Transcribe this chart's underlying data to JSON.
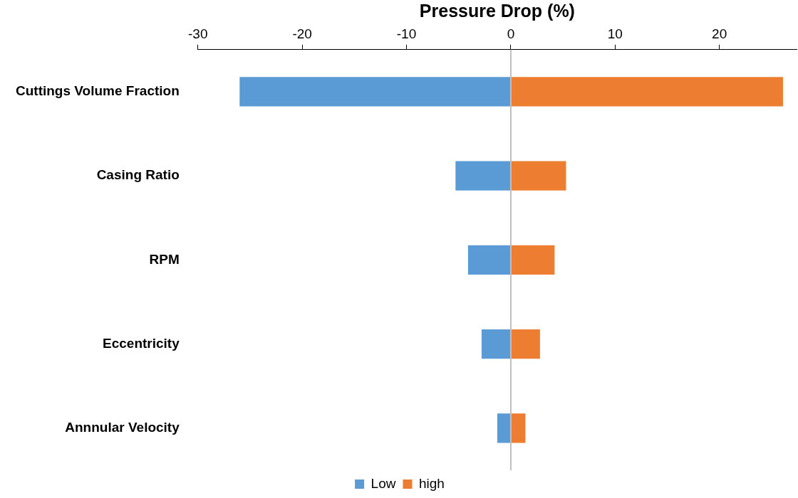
{
  "chart_data": {
    "type": "bar",
    "orientation": "horizontal",
    "stacked": true,
    "xlabel": "Pressure Drop (%)",
    "categories": [
      "Cuttings Volume Fraction",
      "Casing Ratio",
      "RPM",
      "Eccentricity",
      "Annnular Velocity"
    ],
    "series": [
      {
        "name": "Low",
        "color": "#5b9bd5",
        "values": [
          -26,
          -5.3,
          -4.1,
          -2.8,
          -1.3
        ]
      },
      {
        "name": "high",
        "color": "#ed7d31",
        "values": [
          26.1,
          5.3,
          4.2,
          2.8,
          1.4
        ]
      }
    ],
    "xlim": [
      -30,
      27.4
    ],
    "xticks": [
      -30,
      -20,
      -10,
      0,
      10,
      20
    ],
    "ref_lines": [
      {
        "axis": "x",
        "value": 0,
        "color": "#bfbfbf"
      }
    ],
    "grid": false,
    "legend": "bottom"
  }
}
